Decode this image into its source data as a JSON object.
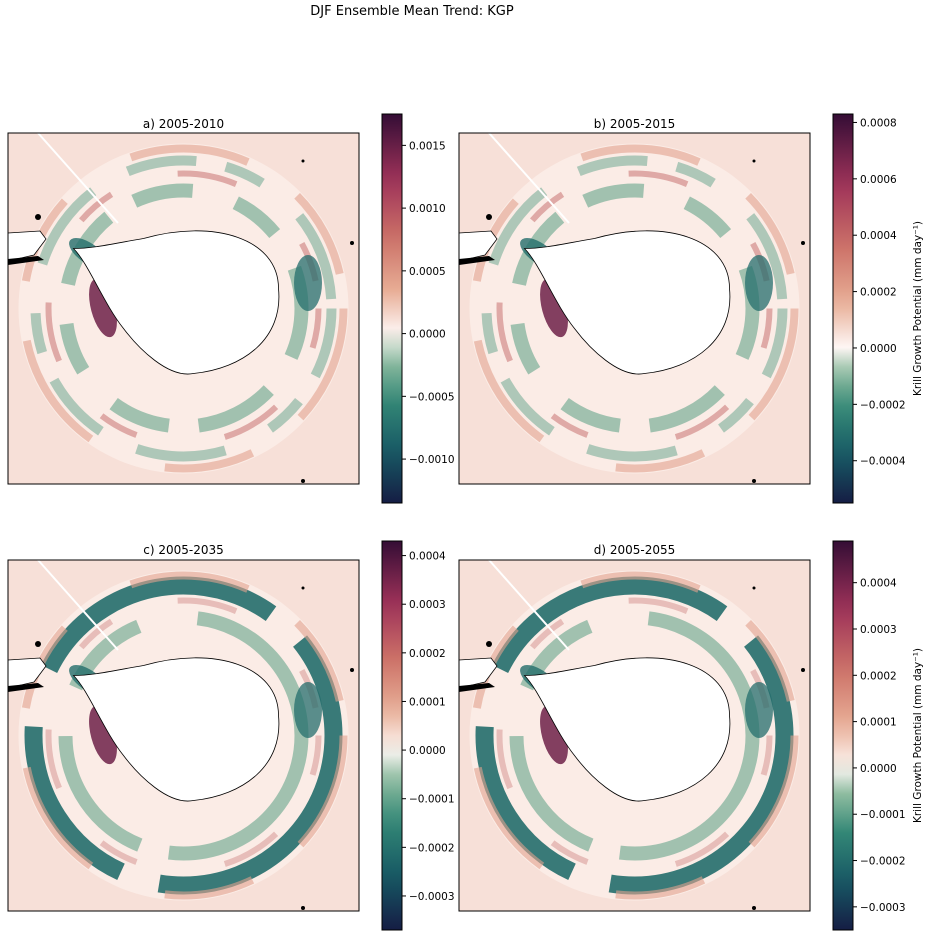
{
  "figure": {
    "suptitle": "DJF Ensemble Mean Trend: KGP"
  },
  "chart_data": [
    {
      "type": "heatmap",
      "panel": "a",
      "title": "a) 2005-2010",
      "projection": "South Polar Stereographic (Southern Ocean, Antarctica centered)",
      "colormap": "curl (dark teal negative → white zero → dark maroon positive)",
      "colorbar": {
        "range": [
          -0.00135,
          0.00175
        ],
        "ticks": [
          -0.001,
          -0.0005,
          0.0,
          0.0005,
          0.001,
          0.0015
        ],
        "tick_labels": [
          "−0.0010",
          "−0.0005",
          "0.0000",
          "0.0005",
          "0.0010",
          "0.0015"
        ],
        "label": ""
      }
    },
    {
      "type": "heatmap",
      "panel": "b",
      "title": "b) 2005-2015",
      "projection": "South Polar Stereographic (Southern Ocean, Antarctica centered)",
      "colormap": "curl (dark teal negative → white zero → dark maroon positive)",
      "colorbar": {
        "range": [
          -0.00055,
          0.00083
        ],
        "ticks": [
          -0.0004,
          -0.0002,
          0.0,
          0.0002,
          0.0004,
          0.0006,
          0.0008
        ],
        "tick_labels": [
          "−0.0004",
          "−0.0002",
          "0.0000",
          "0.0002",
          "0.0004",
          "0.0006",
          "0.0008"
        ],
        "label": "Krill Growth Potential (mm day⁻¹)"
      }
    },
    {
      "type": "heatmap",
      "panel": "c",
      "title": "c) 2005-2035",
      "projection": "South Polar Stereographic (Southern Ocean, Antarctica centered)",
      "colormap": "curl (dark teal negative → white zero → dark maroon positive)",
      "colorbar": {
        "range": [
          -0.00037,
          0.00043
        ],
        "ticks": [
          -0.0003,
          -0.0002,
          -0.0001,
          0.0,
          0.0001,
          0.0002,
          0.0003,
          0.0004
        ],
        "tick_labels": [
          "−0.0003",
          "−0.0002",
          "−0.0001",
          "0.0000",
          "0.0001",
          "0.0002",
          "0.0003",
          "0.0004"
        ],
        "label": ""
      }
    },
    {
      "type": "heatmap",
      "panel": "d",
      "title": "d) 2005-2055",
      "projection": "South Polar Stereographic (Southern Ocean, Antarctica centered)",
      "colormap": "curl (dark teal negative → white zero → dark maroon positive)",
      "colorbar": {
        "range": [
          -0.00035,
          0.00049
        ],
        "ticks": [
          -0.0003,
          -0.0002,
          -0.0001,
          0.0,
          0.0001,
          0.0002,
          0.0003,
          0.0004
        ],
        "tick_labels": [
          "−0.0003",
          "−0.0002",
          "−0.0001",
          "0.0000",
          "0.0001",
          "0.0002",
          "0.0003",
          "0.0004"
        ],
        "label": "Krill Growth Potential (mm day⁻¹)"
      }
    }
  ]
}
